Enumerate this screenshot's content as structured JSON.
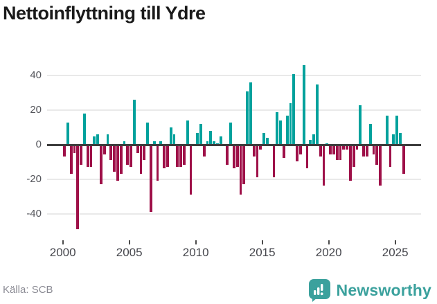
{
  "title": "Nettoinflyttning till Ydre",
  "source": "Källa: SCB",
  "brand": {
    "name": "Newsworthy",
    "color": "#3ba19d"
  },
  "chart_data": {
    "type": "bar",
    "title": "Nettoinflyttning till Ydre",
    "frequency": "quarterly",
    "start_period": "2000 Q1",
    "end_period": "2025 Q3",
    "xlabel": "",
    "ylabel": "",
    "x_ticks": [
      2000,
      2005,
      2010,
      2015,
      2020,
      2025
    ],
    "y_ticks": [
      40,
      20,
      0,
      -20,
      -40
    ],
    "ylim": [
      -50,
      50
    ],
    "grid": true,
    "legend": false,
    "positive_color": "#00a19c",
    "negative_color": "#9e1048",
    "values": [
      -6,
      13,
      -16,
      -4,
      -48,
      -11,
      18,
      -12,
      -12,
      5,
      6,
      -22,
      -5,
      6,
      -8,
      -15,
      -20,
      -16,
      2,
      -11,
      -12,
      26,
      -4,
      -16,
      -8,
      13,
      -38,
      2,
      -20,
      2,
      -13,
      -12,
      10,
      6,
      -12,
      -12,
      -11,
      14,
      -28,
      0,
      7,
      12,
      -6,
      2,
      8,
      2,
      1,
      5,
      0,
      -11,
      13,
      -13,
      -12,
      -28,
      -22,
      31,
      36,
      -6,
      -18,
      -2,
      7,
      4,
      0,
      -18,
      19,
      14,
      -7,
      17,
      24,
      41,
      -9,
      -5,
      46,
      -13,
      3,
      6,
      35,
      -6,
      -23,
      1,
      -5,
      -5,
      -8,
      -8,
      -2,
      -2,
      -20,
      -12,
      -2,
      23,
      -6,
      -6,
      12,
      -5,
      -11,
      -23,
      0,
      17,
      -12,
      6,
      17,
      7,
      -16
    ]
  }
}
